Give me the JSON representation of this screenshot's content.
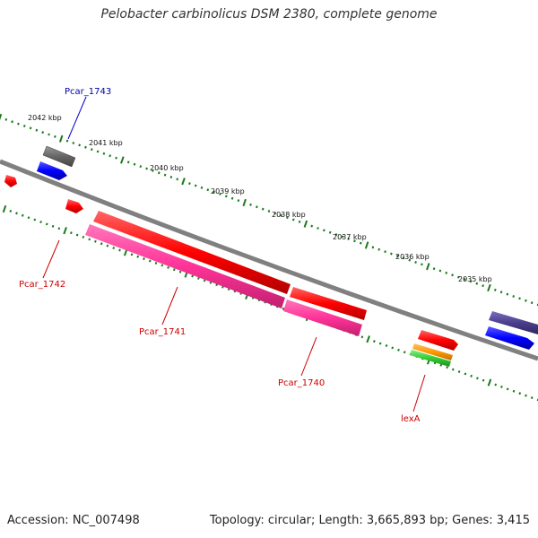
{
  "title": "Pelobacter carbinolicus DSM 2380, complete genome",
  "accession": "Accession: NC_007498",
  "topology": "Topology: circular; Length: 3,665,893 bp; Genes: 3,415",
  "scale_labels": [
    "2042 kbp",
    "2041 kbp",
    "2040 kbp",
    "2039 kbp",
    "2038 kbp",
    "2037 kbp",
    "2036 kbp",
    "2035 kbp"
  ],
  "genes": [
    {
      "name": "Pcar_1743",
      "color": "#0000aa"
    },
    {
      "name": "Pcar_1742",
      "color": "#cc0000"
    },
    {
      "name": "Pcar_1741",
      "color": "#cc0000"
    },
    {
      "name": "Pcar_1740",
      "color": "#cc0000"
    },
    {
      "name": "lexA",
      "color": "#cc0000"
    }
  ],
  "colors": {
    "backbone": "#808080",
    "tick": "#1a7a1a",
    "red_feature": "#ff0000",
    "pink_feature": "#ff3399",
    "blue_feature": "#0000ff",
    "grey_feature": "#666666",
    "purple_feature": "#4b3f8c",
    "orange_feature": "#ff9900",
    "green_feature": "#33cc33"
  }
}
